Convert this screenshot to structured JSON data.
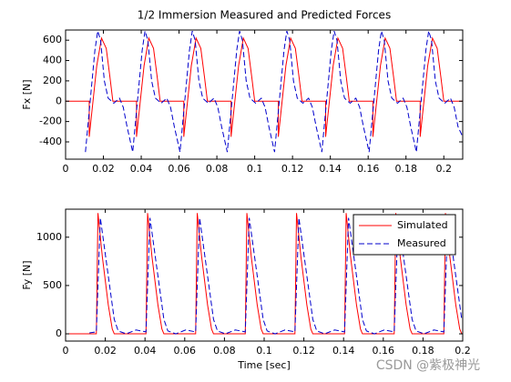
{
  "chart_data": [
    {
      "type": "line",
      "title": "1/2 Immersion Measured and Predicted Forces",
      "ylabel": "Fx [N]",
      "xlim": [
        0,
        0.21
      ],
      "ylim": [
        -570,
        700
      ],
      "xticks": [
        0,
        0.02,
        0.04,
        0.06,
        0.08,
        0.1,
        0.12,
        0.14,
        0.16,
        0.18,
        0.2
      ],
      "yticks": [
        -400,
        -200,
        0,
        200,
        400,
        600
      ],
      "series": [
        {
          "color": "#ff0000",
          "line_style": "solid",
          "x": [
            0,
            0.0125,
            0.0125,
            0.0145,
            0.0165,
            0.019,
            0.0215,
            0.0235,
            0.025,
            0.0375,
            0.0375,
            0.0395,
            0.0415,
            0.044,
            0.0465,
            0.0485,
            0.05,
            0.0625,
            0.0625,
            0.0645,
            0.0665,
            0.069,
            0.0715,
            0.0735,
            0.075,
            0.0875,
            0.0875,
            0.0895,
            0.0915,
            0.094,
            0.0965,
            0.0985,
            0.1,
            0.1125,
            0.1125,
            0.1145,
            0.1165,
            0.119,
            0.1215,
            0.1235,
            0.125,
            0.1375,
            0.1375,
            0.1395,
            0.1415,
            0.144,
            0.1465,
            0.1485,
            0.15,
            0.1625,
            0.1625,
            0.1645,
            0.1665,
            0.169,
            0.1715,
            0.1735,
            0.175,
            0.1875,
            0.1875,
            0.1895,
            0.1915,
            0.194,
            0.1965,
            0.1985,
            0.2,
            0.21
          ],
          "values": [
            0,
            0,
            -350,
            0,
            350,
            620,
            520,
            230,
            0,
            0,
            -350,
            0,
            350,
            620,
            520,
            230,
            0,
            0,
            -350,
            0,
            350,
            620,
            520,
            230,
            0,
            0,
            -350,
            0,
            350,
            620,
            520,
            230,
            0,
            0,
            -350,
            0,
            350,
            620,
            520,
            230,
            0,
            0,
            -350,
            0,
            350,
            620,
            520,
            230,
            0,
            0,
            -350,
            0,
            350,
            620,
            520,
            230,
            0,
            0,
            -350,
            0,
            350,
            620,
            520,
            230,
            0,
            0
          ]
        },
        {
          "color": "#0000cc",
          "line_style": "dashed",
          "x": [
            0.0105,
            0.0135,
            0.0155,
            0.017,
            0.0185,
            0.0205,
            0.0225,
            0.0255,
            0.0285,
            0.0305,
            0.0325,
            0.0355,
            0.0385,
            0.0405,
            0.042,
            0.0435,
            0.0455,
            0.0475,
            0.0505,
            0.0535,
            0.0555,
            0.0575,
            0.0605,
            0.0635,
            0.0655,
            0.067,
            0.0685,
            0.0705,
            0.0725,
            0.0755,
            0.0785,
            0.0805,
            0.0825,
            0.0855,
            0.0885,
            0.0905,
            0.092,
            0.0935,
            0.0955,
            0.0975,
            0.1005,
            0.1035,
            0.1055,
            0.1075,
            0.1105,
            0.1135,
            0.1155,
            0.117,
            0.1185,
            0.1205,
            0.1225,
            0.1255,
            0.1285,
            0.1305,
            0.1325,
            0.1355,
            0.1385,
            0.1405,
            0.142,
            0.1435,
            0.1455,
            0.1475,
            0.1505,
            0.1535,
            0.1555,
            0.1575,
            0.1605,
            0.1635,
            0.1655,
            0.167,
            0.1685,
            0.1705,
            0.1725,
            0.1755,
            0.1785,
            0.1805,
            0.1825,
            0.1855,
            0.1885,
            0.1905,
            0.192,
            0.1935,
            0.1955,
            0.1975,
            0.2005,
            0.2035,
            0.2055,
            0.2075,
            0.21
          ],
          "values": [
            -500,
            100,
            500,
            690,
            600,
            200,
            30,
            -20,
            30,
            -60,
            -250,
            -500,
            100,
            500,
            690,
            600,
            200,
            30,
            -20,
            30,
            -60,
            -250,
            -500,
            100,
            500,
            690,
            600,
            200,
            30,
            -20,
            30,
            -60,
            -250,
            -500,
            100,
            500,
            690,
            600,
            200,
            30,
            -20,
            30,
            -60,
            -250,
            -500,
            100,
            500,
            690,
            600,
            200,
            30,
            -20,
            30,
            -60,
            -250,
            -500,
            100,
            500,
            690,
            600,
            200,
            30,
            -20,
            30,
            -60,
            -250,
            -500,
            100,
            500,
            690,
            600,
            200,
            30,
            -20,
            30,
            -60,
            -250,
            -500,
            100,
            500,
            690,
            600,
            200,
            30,
            -20,
            30,
            -60,
            -250,
            -350
          ]
        }
      ]
    },
    {
      "type": "line",
      "xlabel": "Time [sec]",
      "ylabel": "Fy [N]",
      "xlim": [
        0,
        0.2
      ],
      "ylim": [
        -75,
        1290
      ],
      "xticks": [
        0,
        0.02,
        0.04,
        0.06,
        0.08,
        0.1,
        0.12,
        0.14,
        0.16,
        0.18,
        0.2
      ],
      "yticks": [
        0,
        500,
        1000
      ],
      "legend": "upper right",
      "series": [
        {
          "name": "Simulated",
          "color": "#ff0000",
          "line_style": "solid",
          "x": [
            0,
            0.0155,
            0.0163,
            0.0185,
            0.0215,
            0.0235,
            0.0245,
            0.0405,
            0.0413,
            0.0435,
            0.0465,
            0.0485,
            0.0495,
            0.0655,
            0.0663,
            0.0685,
            0.0715,
            0.0735,
            0.0745,
            0.0905,
            0.0913,
            0.0935,
            0.0965,
            0.0985,
            0.0995,
            0.1155,
            0.1163,
            0.1185,
            0.1215,
            0.1235,
            0.1245,
            0.1405,
            0.1413,
            0.1435,
            0.1465,
            0.1485,
            0.1495,
            0.1655,
            0.1663,
            0.1685,
            0.1715,
            0.1735,
            0.1745,
            0.1905,
            0.1913,
            0.1935,
            0.1965,
            0.1985,
            0.1995,
            0.2
          ],
          "values": [
            0,
            0,
            1250,
            800,
            300,
            50,
            0,
            0,
            1250,
            800,
            300,
            50,
            0,
            0,
            1250,
            800,
            300,
            50,
            0,
            0,
            1250,
            800,
            300,
            50,
            0,
            0,
            1250,
            800,
            300,
            50,
            0,
            0,
            1250,
            800,
            300,
            50,
            0,
            0,
            1250,
            800,
            300,
            50,
            0,
            0,
            1250,
            800,
            300,
            50,
            0,
            0
          ]
        },
        {
          "name": "Measured",
          "color": "#0000cc",
          "line_style": "dashed",
          "x": [
            0.012,
            0.0155,
            0.0175,
            0.0195,
            0.0225,
            0.0245,
            0.0265,
            0.0305,
            0.0355,
            0.0405,
            0.0425,
            0.0445,
            0.0475,
            0.0495,
            0.0515,
            0.0555,
            0.0605,
            0.0655,
            0.0675,
            0.0695,
            0.0725,
            0.0745,
            0.0765,
            0.0805,
            0.0855,
            0.0905,
            0.0925,
            0.0945,
            0.0975,
            0.0995,
            0.1015,
            0.1055,
            0.1105,
            0.1155,
            0.1175,
            0.1195,
            0.1225,
            0.1245,
            0.1265,
            0.1305,
            0.1355,
            0.1405,
            0.1425,
            0.1445,
            0.1475,
            0.1495,
            0.1515,
            0.1555,
            0.1605,
            0.1655,
            0.1675,
            0.1695,
            0.1725,
            0.1745,
            0.1765,
            0.1805,
            0.1855,
            0.1905,
            0.1925,
            0.1945,
            0.1975,
            0.1995
          ],
          "values": [
            10,
            20,
            1200,
            900,
            450,
            150,
            30,
            0,
            40,
            20,
            1200,
            900,
            450,
            150,
            30,
            0,
            40,
            20,
            1200,
            900,
            450,
            150,
            30,
            0,
            40,
            20,
            1200,
            900,
            450,
            150,
            30,
            0,
            40,
            20,
            1200,
            900,
            450,
            150,
            30,
            0,
            40,
            20,
            1200,
            900,
            450,
            150,
            30,
            0,
            40,
            20,
            1200,
            900,
            450,
            150,
            30,
            0,
            40,
            20,
            1200,
            900,
            450,
            150
          ]
        }
      ]
    }
  ],
  "watermark": "CSDN @紫极神光"
}
